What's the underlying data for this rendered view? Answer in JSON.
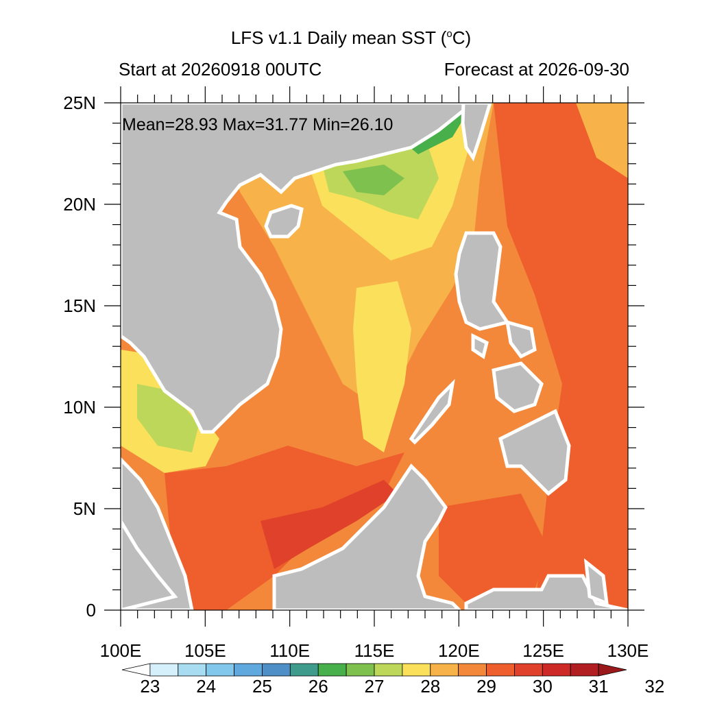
{
  "header": {
    "title": "LFS v1.1 Daily mean SST (",
    "title_unit_sup": "o",
    "title_unit_end": "C)",
    "start": "Start at 20260918 00UTC",
    "forecast": "Forecast at 2026-09-30"
  },
  "stats": {
    "text": "Mean=28.93  Max=31.77  Min=26.10"
  },
  "map": {
    "lon_range": [
      100,
      130
    ],
    "lat_range": [
      0,
      25
    ],
    "lon_labels": [
      "100E",
      "105E",
      "110E",
      "115E",
      "120E",
      "125E",
      "130E"
    ],
    "lat_labels": [
      "0",
      "5N",
      "10N",
      "15N",
      "20N",
      "25N"
    ],
    "land_color": "#bdbdbd",
    "missing_color": "#ffffff"
  },
  "colorbar": {
    "labels": [
      "23",
      "24",
      "25",
      "26",
      "27",
      "28",
      "29",
      "30",
      "31",
      "32"
    ],
    "colors": [
      "#ffffff",
      "#d6f0fb",
      "#a8dcf1",
      "#82c7ec",
      "#5fa9df",
      "#4f8fc8",
      "#3f9b8c",
      "#47b04a",
      "#7ec14e",
      "#bdd75a",
      "#fbe05b",
      "#f7b349",
      "#f3883a",
      "#ee5f2d",
      "#e0412a",
      "#cd2a27",
      "#b11f22",
      "#9a1a1c"
    ]
  }
}
